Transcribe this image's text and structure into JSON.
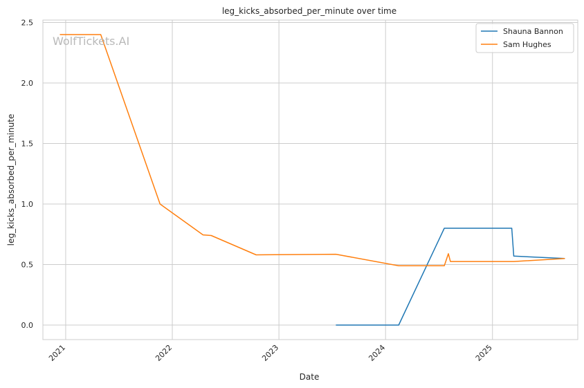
{
  "watermark": "WolfTickets.AI",
  "chart_data": {
    "type": "line",
    "title": "leg_kicks_absorbed_per_minute over time",
    "xlabel": "Date",
    "ylabel": "leg_kicks_absorbed_per_minute",
    "x_type": "date",
    "xlim": [
      "2020-10-15",
      "2025-10-20"
    ],
    "ylim": [
      -0.12,
      2.52
    ],
    "x_ticks": [
      {
        "date": "2021-01-01",
        "label": "2021"
      },
      {
        "date": "2022-01-01",
        "label": "2022"
      },
      {
        "date": "2023-01-01",
        "label": "2023"
      },
      {
        "date": "2024-01-01",
        "label": "2024"
      },
      {
        "date": "2025-01-01",
        "label": "2025"
      }
    ],
    "y_ticks": [
      {
        "value": 0.0,
        "label": "0.0"
      },
      {
        "value": 0.5,
        "label": "0.5"
      },
      {
        "value": 1.0,
        "label": "1.0"
      },
      {
        "value": 1.5,
        "label": "1.5"
      },
      {
        "value": 2.0,
        "label": "2.0"
      },
      {
        "value": 2.5,
        "label": "2.5"
      }
    ],
    "grid": true,
    "legend_position": "top-right",
    "series": [
      {
        "name": "Shauna Bannon",
        "color": "#1f77b4",
        "points": [
          {
            "x": "2023-07-15",
            "y": 0.0
          },
          {
            "x": "2024-02-15",
            "y": 0.0
          },
          {
            "x": "2024-07-20",
            "y": 0.8
          },
          {
            "x": "2025-03-08",
            "y": 0.8
          },
          {
            "x": "2025-03-15",
            "y": 0.57
          },
          {
            "x": "2025-09-06",
            "y": 0.55
          }
        ]
      },
      {
        "name": "Sam Hughes",
        "color": "#ff7f0e",
        "points": [
          {
            "x": "2020-12-12",
            "y": 2.4
          },
          {
            "x": "2021-05-01",
            "y": 2.4
          },
          {
            "x": "2021-11-20",
            "y": 1.0
          },
          {
            "x": "2022-04-16",
            "y": 0.745
          },
          {
            "x": "2022-05-14",
            "y": 0.74
          },
          {
            "x": "2022-10-15",
            "y": 0.58
          },
          {
            "x": "2023-07-15",
            "y": 0.585
          },
          {
            "x": "2024-02-15",
            "y": 0.49
          },
          {
            "x": "2024-07-20",
            "y": 0.49
          },
          {
            "x": "2024-08-03",
            "y": 0.59
          },
          {
            "x": "2024-08-10",
            "y": 0.525
          },
          {
            "x": "2025-03-15",
            "y": 0.525
          },
          {
            "x": "2025-09-06",
            "y": 0.55
          }
        ]
      }
    ]
  }
}
